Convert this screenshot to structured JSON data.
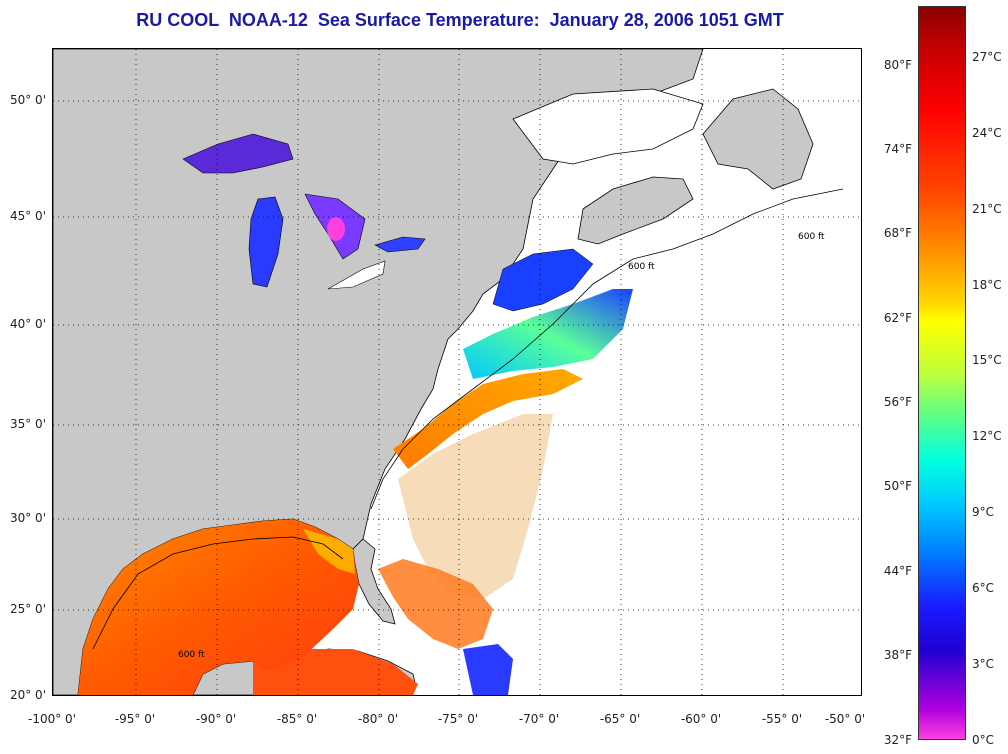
{
  "title": "RU COOL  NOAA-12  Sea Surface Temperature:  January 28, 2006 1051 GMT",
  "contour_label": "600 ft",
  "lat_labels": [
    "50° 0'",
    "45° 0'",
    "40° 0'",
    "35° 0'",
    "30° 0'",
    "25° 0'",
    "20° 0'"
  ],
  "lon_labels": [
    "-100° 0'",
    "-95° 0'",
    "-90° 0'",
    "-85° 0'",
    "-80° 0'",
    "-75° 0'",
    "-70° 0'",
    "-65° 0'",
    "-60° 0'",
    "-55° 0'",
    "-50° 0'"
  ],
  "colorbar": {
    "fahrenheit": [
      "80°F",
      "74°F",
      "68°F",
      "62°F",
      "56°F",
      "50°F",
      "44°F",
      "38°F",
      "32°F"
    ],
    "celsius": [
      "27°C",
      "24°C",
      "21°C",
      "18°C",
      "15°C",
      "12°C",
      "9°C",
      "6°C",
      "3°C",
      "0°C"
    ]
  },
  "colors": {
    "land": "#c8c8c8",
    "water_nodata": "#ffffff",
    "title": "#1a1aa8"
  }
}
